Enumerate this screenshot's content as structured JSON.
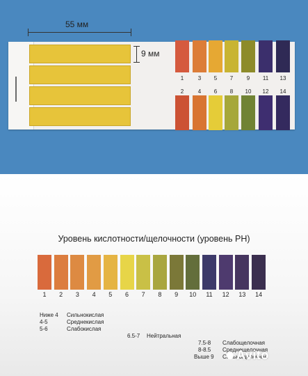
{
  "dimensions": {
    "width_label": "55 мм",
    "height_label": "9 мм"
  },
  "booklet": {
    "top_row": [
      {
        "num": "1",
        "color": "#d55a3e"
      },
      {
        "num": "3",
        "color": "#dc7d38"
      },
      {
        "num": "5",
        "color": "#e6a833"
      },
      {
        "num": "7",
        "color": "#c8b432"
      },
      {
        "num": "9",
        "color": "#8d8b2a"
      },
      {
        "num": "11",
        "color": "#3b2f6c"
      },
      {
        "num": "13",
        "color": "#2f2a55"
      }
    ],
    "bottom_row": [
      {
        "num": "2",
        "color": "#cc5234"
      },
      {
        "num": "4",
        "color": "#d87431"
      },
      {
        "num": "6",
        "color": "#e5cc38"
      },
      {
        "num": "8",
        "color": "#a6a73a"
      },
      {
        "num": "10",
        "color": "#708334"
      },
      {
        "num": "12",
        "color": "#3e2e70"
      },
      {
        "num": "14",
        "color": "#342a5e"
      }
    ]
  },
  "scale": {
    "title": "Уровень кислотности/щелочности (уровень PH)",
    "items": [
      {
        "num": "1",
        "color": "#d96a3c"
      },
      {
        "num": "2",
        "color": "#dc7d3f"
      },
      {
        "num": "3",
        "color": "#dd8a42"
      },
      {
        "num": "4",
        "color": "#e19b44"
      },
      {
        "num": "5",
        "color": "#e5b443"
      },
      {
        "num": "6",
        "color": "#e7d548"
      },
      {
        "num": "7",
        "color": "#c9c046"
      },
      {
        "num": "8",
        "color": "#a9a63f"
      },
      {
        "num": "9",
        "color": "#7b7838"
      },
      {
        "num": "10",
        "color": "#636e3b"
      },
      {
        "num": "11",
        "color": "#3d3a6a"
      },
      {
        "num": "12",
        "color": "#4e3a6e"
      },
      {
        "num": "13",
        "color": "#46355f"
      },
      {
        "num": "14",
        "color": "#3b2f4f"
      }
    ]
  },
  "legend": {
    "acid": [
      {
        "range": "Ниже 4",
        "label": "Сильнокислая"
      },
      {
        "range": "4-5",
        "label": "Среднекислая"
      },
      {
        "range": "5-6",
        "label": "Слабокислая"
      }
    ],
    "neutral": {
      "range": "6.5-7",
      "label": "Нейтральная"
    },
    "alkaline": [
      {
        "range": "7.5-8",
        "label": "Слабощелочная"
      },
      {
        "range": "8-8.5",
        "label": "Среднещелочная"
      },
      {
        "range": "Выше 9",
        "label": "Сильнощелочная"
      }
    ]
  },
  "watermark": "Avito"
}
